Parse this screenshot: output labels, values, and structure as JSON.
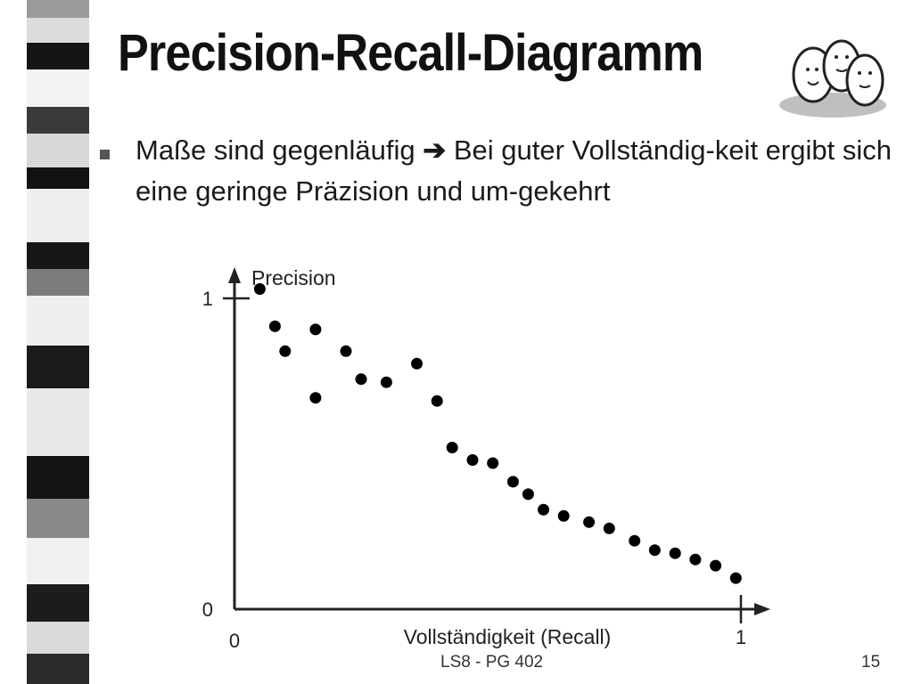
{
  "slide": {
    "title": "Precision-Recall-Diagramm",
    "bullet": {
      "part1": "Maße sind gegenläufig ",
      "arrow": "➔",
      "part2": " Bei guter Vollständig-keit ergibt sich eine geringe Präzision und um-gekehrt"
    },
    "footer": {
      "center": "LS8 - PG 402",
      "page": "15"
    },
    "colors": {
      "text": "#1a1a1a",
      "bullet": "#555555",
      "points": "#000000"
    },
    "icons": {
      "decoration": "eggs-icon"
    }
  },
  "chart_data": {
    "type": "scatter",
    "title": "",
    "xlabel": "Vollständigkeit (Recall)",
    "ylabel": "Precision",
    "xlim": [
      0,
      1
    ],
    "ylim": [
      0,
      1
    ],
    "xticks": [
      {
        "value": 0,
        "label": "0"
      },
      {
        "value": 1,
        "label": "1"
      }
    ],
    "yticks": [
      {
        "value": 0,
        "label": "0"
      },
      {
        "value": 1,
        "label": "1"
      }
    ],
    "grid": false,
    "points": [
      {
        "x": 0.05,
        "y": 1.03
      },
      {
        "x": 0.08,
        "y": 0.91
      },
      {
        "x": 0.1,
        "y": 0.83
      },
      {
        "x": 0.16,
        "y": 0.9
      },
      {
        "x": 0.16,
        "y": 0.68
      },
      {
        "x": 0.22,
        "y": 0.83
      },
      {
        "x": 0.25,
        "y": 0.74
      },
      {
        "x": 0.3,
        "y": 0.73
      },
      {
        "x": 0.36,
        "y": 0.79
      },
      {
        "x": 0.4,
        "y": 0.67
      },
      {
        "x": 0.43,
        "y": 0.52
      },
      {
        "x": 0.47,
        "y": 0.48
      },
      {
        "x": 0.51,
        "y": 0.47
      },
      {
        "x": 0.55,
        "y": 0.41
      },
      {
        "x": 0.58,
        "y": 0.37
      },
      {
        "x": 0.61,
        "y": 0.32
      },
      {
        "x": 0.65,
        "y": 0.3
      },
      {
        "x": 0.7,
        "y": 0.28
      },
      {
        "x": 0.74,
        "y": 0.26
      },
      {
        "x": 0.79,
        "y": 0.22
      },
      {
        "x": 0.83,
        "y": 0.19
      },
      {
        "x": 0.87,
        "y": 0.18
      },
      {
        "x": 0.91,
        "y": 0.16
      },
      {
        "x": 0.95,
        "y": 0.14
      },
      {
        "x": 0.99,
        "y": 0.1
      }
    ]
  }
}
